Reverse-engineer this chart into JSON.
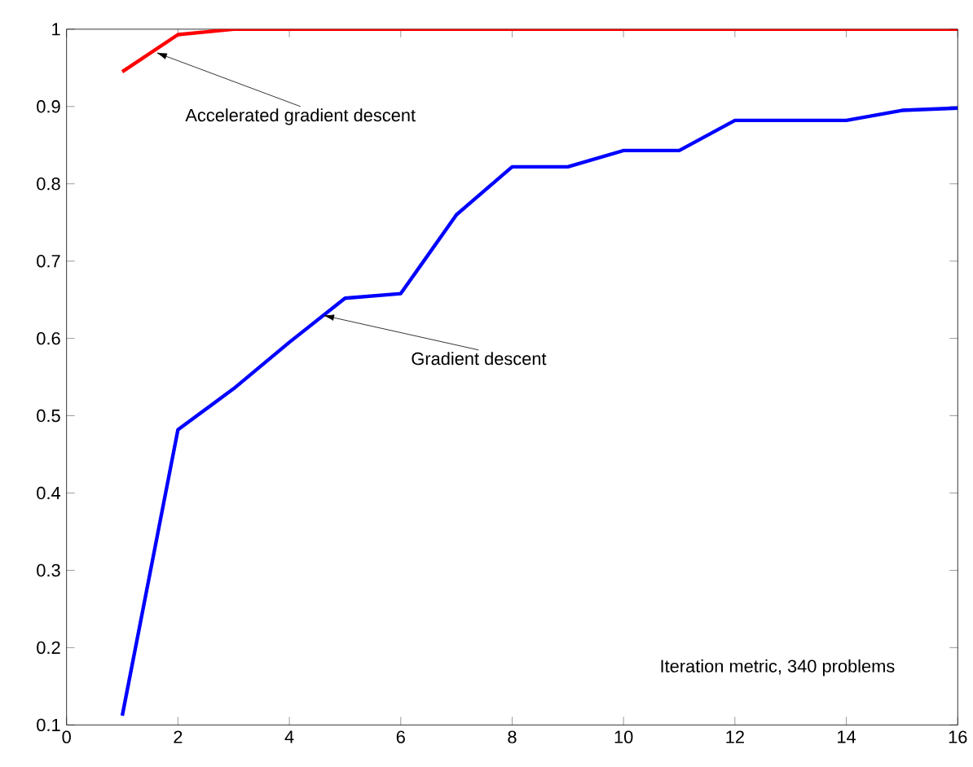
{
  "chart_data": {
    "type": "line",
    "x": [
      1,
      2,
      3,
      4,
      5,
      6,
      7,
      8,
      9,
      10,
      11,
      12,
      13,
      14,
      15,
      16
    ],
    "series": [
      {
        "color": "#ff0000",
        "values": [
          0.945,
          0.993,
          1.0,
          1.0,
          1.0,
          1.0,
          1.0,
          1.0,
          1.0,
          1.0,
          1.0,
          1.0,
          1.0,
          1.0,
          1.0,
          1.0
        ]
      },
      {
        "color": "#0000ff",
        "values": [
          0.112,
          0.482,
          0.535,
          0.595,
          0.652,
          0.658,
          0.76,
          0.822,
          0.822,
          0.843,
          0.843,
          0.882,
          0.882,
          0.882,
          0.895,
          0.898
        ]
      }
    ],
    "annotations": [
      {
        "text": "Accelerated gradient descent",
        "x": 1.6,
        "y": 0.97
      },
      {
        "text": "Gradient descent",
        "x": 4.6,
        "y": 0.63
      },
      "Iteration metric, 340 problems"
    ],
    "xlim": [
      0,
      16
    ],
    "ylim": [
      0.1,
      1
    ],
    "xticks": [
      0,
      2,
      4,
      6,
      8,
      10,
      12,
      14,
      16
    ],
    "yticks": [
      0.1,
      0.2,
      0.3,
      0.4,
      0.5,
      0.6,
      0.7,
      0.8,
      0.9,
      1
    ],
    "grid": false,
    "marker": "none",
    "line_style": "solid"
  }
}
